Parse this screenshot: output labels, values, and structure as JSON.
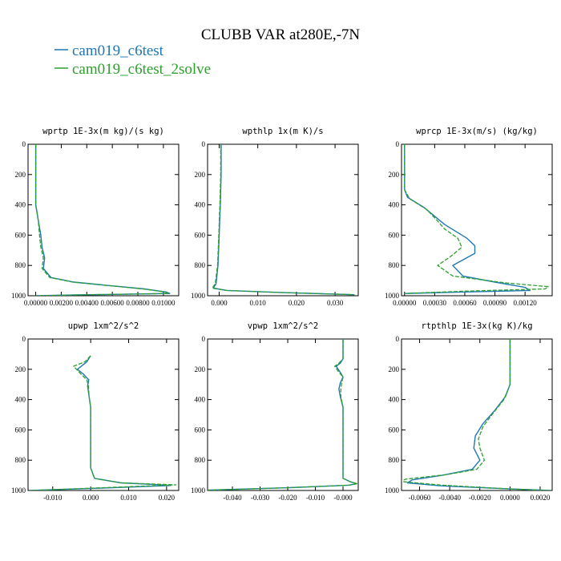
{
  "title": "CLUBB VAR at280E,-7N",
  "colors": {
    "series1": "#1f77b4",
    "series2": "#2ca02c"
  },
  "legend": [
    {
      "name": "cam019_c6test",
      "color": "#1f77b4",
      "style": "solid"
    },
    {
      "name": "cam019_c6test_2solve",
      "color": "#2ca02c",
      "style": "dashed"
    }
  ],
  "chart_data": [
    {
      "type": "line",
      "title": "wprtp  1E-3x(m kg)/(s kg)",
      "xlim": [
        -0.0006,
        0.0112
      ],
      "ylim": [
        0,
        1000
      ],
      "y_inverted": true,
      "xticks": [
        0,
        0.002,
        0.004,
        0.006,
        0.008,
        0.01
      ],
      "xtick_labels": [
        "0.00000",
        "0.00200",
        "0.00400",
        "0.00600",
        "0.00800",
        "0.01000"
      ],
      "yticks": [
        0,
        200,
        400,
        600,
        800,
        1000
      ],
      "ytick_labels": [
        "0",
        "200",
        "400",
        "600",
        "800",
        "1000"
      ],
      "series": [
        {
          "name": "cam019_c6test",
          "points": [
            [
              0,
              0
            ],
            [
              0,
              300
            ],
            [
              0,
              400
            ],
            [
              0.0002,
              500
            ],
            [
              0.0004,
              600
            ],
            [
              0.0005,
              680
            ],
            [
              0.0007,
              750
            ],
            [
              0.0006,
              820
            ],
            [
              0.0012,
              880
            ],
            [
              0.003,
              910
            ],
            [
              0.006,
              935
            ],
            [
              0.0085,
              955
            ],
            [
              0.0102,
              975
            ],
            [
              0.0105,
              985
            ],
            [
              0.0028,
              995
            ],
            [
              0,
              1000
            ]
          ]
        },
        {
          "name": "cam019_c6test_2solve",
          "points": [
            [
              0,
              0
            ],
            [
              0,
              300
            ],
            [
              0,
              400
            ],
            [
              0.0002,
              500
            ],
            [
              0.0003,
              600
            ],
            [
              0.0004,
              680
            ],
            [
              0.0006,
              750
            ],
            [
              0.0005,
              820
            ],
            [
              0.0011,
              880
            ],
            [
              0.0029,
              910
            ],
            [
              0.0059,
              935
            ],
            [
              0.0084,
              955
            ],
            [
              0.0101,
              975
            ],
            [
              0.0104,
              985
            ],
            [
              0.0027,
              995
            ],
            [
              0,
              1000
            ]
          ]
        }
      ]
    },
    {
      "type": "line",
      "title": "wpthlp  1x(m K)/s",
      "xlim": [
        -0.003,
        0.036
      ],
      "ylim": [
        0,
        1000
      ],
      "y_inverted": true,
      "xticks": [
        0,
        0.01,
        0.02,
        0.03
      ],
      "xtick_labels": [
        "0.000",
        "0.010",
        "0.020",
        "0.030"
      ],
      "yticks": [
        0,
        200,
        400,
        600,
        800,
        1000
      ],
      "ytick_labels": [
        "0",
        "200",
        "400",
        "600",
        "800",
        "1000"
      ],
      "series": [
        {
          "name": "cam019_c6test",
          "points": [
            [
              0.0005,
              0
            ],
            [
              0.0005,
              200
            ],
            [
              0.0003,
              400
            ],
            [
              0,
              600
            ],
            [
              -0.0003,
              800
            ],
            [
              -0.0008,
              920
            ],
            [
              -0.0015,
              950
            ],
            [
              0.002,
              965
            ],
            [
              0.015,
              978
            ],
            [
              0.028,
              988
            ],
            [
              0.035,
              993
            ]
          ]
        },
        {
          "name": "cam019_c6test_2solve",
          "points": [
            [
              0.0004,
              0
            ],
            [
              0.0004,
              200
            ],
            [
              0.0002,
              400
            ],
            [
              -0.0001,
              600
            ],
            [
              -0.0004,
              800
            ],
            [
              -0.001,
              920
            ],
            [
              -0.0018,
              950
            ],
            [
              0.0018,
              965
            ],
            [
              0.0148,
              978
            ],
            [
              0.0278,
              988
            ],
            [
              0.035,
              993
            ]
          ]
        }
      ]
    },
    {
      "type": "line",
      "title": "wprcp  1E-3x(m/s) (kg/kg)",
      "xlim": [
        -3e-05,
        0.00147
      ],
      "ylim": [
        0,
        1000
      ],
      "y_inverted": true,
      "xticks": [
        0,
        0.0003,
        0.0006,
        0.0009,
        0.0012
      ],
      "xtick_labels": [
        "0.00000",
        "0.00030",
        "0.00060",
        "0.00090",
        "0.00120"
      ],
      "yticks": [
        0,
        200,
        400,
        600,
        800,
        1000
      ],
      "ytick_labels": [
        "0",
        "200",
        "400",
        "600",
        "800",
        "1000"
      ],
      "series": [
        {
          "name": "cam019_c6test",
          "points": [
            [
              0,
              0
            ],
            [
              0,
              300
            ],
            [
              3e-05,
              350
            ],
            [
              0.0002,
              420
            ],
            [
              0.0004,
              530
            ],
            [
              0.00062,
              620
            ],
            [
              0.0007,
              670
            ],
            [
              0.0007,
              720
            ],
            [
              0.00048,
              800
            ],
            [
              0.00058,
              870
            ],
            [
              0.0009,
              910
            ],
            [
              0.0012,
              945
            ],
            [
              0.00125,
              965
            ],
            [
              0.0006,
              975
            ],
            [
              0,
              985
            ]
          ]
        },
        {
          "name": "cam019_c6test_2solve",
          "points": [
            [
              0,
              0
            ],
            [
              0,
              300
            ],
            [
              5e-05,
              360
            ],
            [
              0.00022,
              430
            ],
            [
              0.00032,
              500
            ],
            [
              0.0004,
              560
            ],
            [
              0.00053,
              620
            ],
            [
              0.00057,
              680
            ],
            [
              0.00046,
              740
            ],
            [
              0.00033,
              800
            ],
            [
              0.00048,
              870
            ],
            [
              0.001,
              915
            ],
            [
              0.00143,
              940
            ],
            [
              0.0014,
              955
            ],
            [
              0.0006,
              970
            ],
            [
              0,
              985
            ]
          ]
        }
      ]
    },
    {
      "type": "line",
      "title": "upwp  1xm^2/s^2",
      "xlim": [
        -0.0165,
        0.0232
      ],
      "ylim": [
        0,
        1000
      ],
      "y_inverted": true,
      "xticks": [
        -0.01,
        0,
        0.01,
        0.02
      ],
      "xtick_labels": [
        "-0.010",
        "0.000",
        "0.010",
        "0.020"
      ],
      "yticks": [
        0,
        200,
        400,
        600,
        800,
        1000
      ],
      "ytick_labels": [
        "0",
        "200",
        "400",
        "600",
        "800",
        "1000"
      ],
      "series": [
        {
          "name": "cam019_c6test",
          "points": [
            [
              0,
              110
            ],
            [
              -0.001,
              150
            ],
            [
              -0.0035,
              200
            ],
            [
              -0.002,
              230
            ],
            [
              -0.0005,
              270
            ],
            [
              -0.0008,
              310
            ],
            [
              -0.0004,
              380
            ],
            [
              0,
              450
            ],
            [
              0,
              600
            ],
            [
              0,
              850
            ],
            [
              0.001,
              920
            ],
            [
              0.008,
              950
            ],
            [
              0.018,
              962
            ],
            [
              0.021,
              967
            ],
            [
              0.002,
              985
            ],
            [
              -0.016,
              1000
            ]
          ]
        },
        {
          "name": "cam019_c6test_2solve",
          "points": [
            [
              0,
              110
            ],
            [
              -0.0015,
              150
            ],
            [
              -0.0045,
              180
            ],
            [
              -0.003,
              220
            ],
            [
              -0.001,
              270
            ],
            [
              -0.0006,
              310
            ],
            [
              -0.0004,
              380
            ],
            [
              0,
              450
            ],
            [
              0,
              600
            ],
            [
              0,
              850
            ],
            [
              0.001,
              920
            ],
            [
              0.008,
              950
            ],
            [
              0.019,
              960
            ],
            [
              0.0225,
              963
            ],
            [
              0.003,
              982
            ],
            [
              -0.016,
              1000
            ]
          ]
        }
      ]
    },
    {
      "type": "line",
      "title": "vpwp  1xm^2/s^2",
      "xlim": [
        -0.049,
        0.0055
      ],
      "ylim": [
        0,
        1000
      ],
      "y_inverted": true,
      "xticks": [
        -0.04,
        -0.03,
        -0.02,
        -0.01,
        0
      ],
      "xtick_labels": [
        "-0.040",
        "-0.030",
        "-0.020",
        "-0.010",
        "-0.000"
      ],
      "yticks": [
        0,
        200,
        400,
        600,
        800,
        1000
      ],
      "ytick_labels": [
        "0",
        "200",
        "400",
        "600",
        "800",
        "1000"
      ],
      "series": [
        {
          "name": "cam019_c6test",
          "points": [
            [
              0,
              0
            ],
            [
              0,
              130
            ],
            [
              -0.001,
              160
            ],
            [
              -0.0025,
              180
            ],
            [
              -0.001,
              220
            ],
            [
              0,
              250
            ],
            [
              -0.001,
              290
            ],
            [
              -0.0015,
              330
            ],
            [
              -0.001,
              380
            ],
            [
              0,
              450
            ],
            [
              0,
              600
            ],
            [
              0,
              850
            ],
            [
              0,
              920
            ],
            [
              0.003,
              945
            ],
            [
              0.005,
              955
            ],
            [
              0.002,
              965
            ],
            [
              -0.02,
              982
            ],
            [
              -0.049,
              998
            ]
          ]
        },
        {
          "name": "cam019_c6test_2solve",
          "points": [
            [
              0,
              0
            ],
            [
              0,
              130
            ],
            [
              -0.0015,
              160
            ],
            [
              -0.003,
              180
            ],
            [
              -0.0015,
              220
            ],
            [
              0,
              250
            ],
            [
              -0.0005,
              290
            ],
            [
              -0.0008,
              330
            ],
            [
              -0.0008,
              380
            ],
            [
              0,
              450
            ],
            [
              0,
              600
            ],
            [
              0,
              850
            ],
            [
              0,
              920
            ],
            [
              0.003,
              945
            ],
            [
              0.0052,
              955
            ],
            [
              0.002,
              965
            ],
            [
              -0.02,
              982
            ],
            [
              -0.049,
              998
            ]
          ]
        }
      ]
    },
    {
      "type": "line",
      "title": "rtpthlp  1E-3x(kg K)/kg",
      "xlim": [
        -0.0072,
        0.0028
      ],
      "ylim": [
        0,
        1000
      ],
      "y_inverted": true,
      "xticks": [
        -0.006,
        -0.004,
        -0.002,
        0,
        0.002
      ],
      "xtick_labels": [
        "-0.0060",
        "-0.0040",
        "-0.0020",
        "0.0000",
        "0.0020"
      ],
      "yticks": [
        0,
        200,
        400,
        600,
        800,
        1000
      ],
      "ytick_labels": [
        "0",
        "200",
        "400",
        "600",
        "800",
        "1000"
      ],
      "series": [
        {
          "name": "cam019_c6test",
          "points": [
            [
              0,
              0
            ],
            [
              0,
              300
            ],
            [
              -0.0003,
              380
            ],
            [
              -0.001,
              470
            ],
            [
              -0.0018,
              560
            ],
            [
              -0.0023,
              640
            ],
            [
              -0.0024,
              720
            ],
            [
              -0.002,
              800
            ],
            [
              -0.0025,
              860
            ],
            [
              -0.0045,
              900
            ],
            [
              -0.0065,
              930
            ],
            [
              -0.0068,
              950
            ],
            [
              -0.0045,
              970
            ],
            [
              0,
              990
            ],
            [
              0.0027,
              1000
            ]
          ]
        },
        {
          "name": "cam019_c6test_2solve",
          "points": [
            [
              0,
              0
            ],
            [
              0,
              300
            ],
            [
              -0.0004,
              400
            ],
            [
              -0.0012,
              500
            ],
            [
              -0.0018,
              580
            ],
            [
              -0.0021,
              660
            ],
            [
              -0.002,
              720
            ],
            [
              -0.0017,
              800
            ],
            [
              -0.0022,
              860
            ],
            [
              -0.0042,
              895
            ],
            [
              -0.0069,
              925
            ],
            [
              -0.0073,
              940
            ],
            [
              -0.0045,
              965
            ],
            [
              0,
              990
            ],
            [
              0.0027,
              1000
            ]
          ]
        }
      ]
    }
  ]
}
